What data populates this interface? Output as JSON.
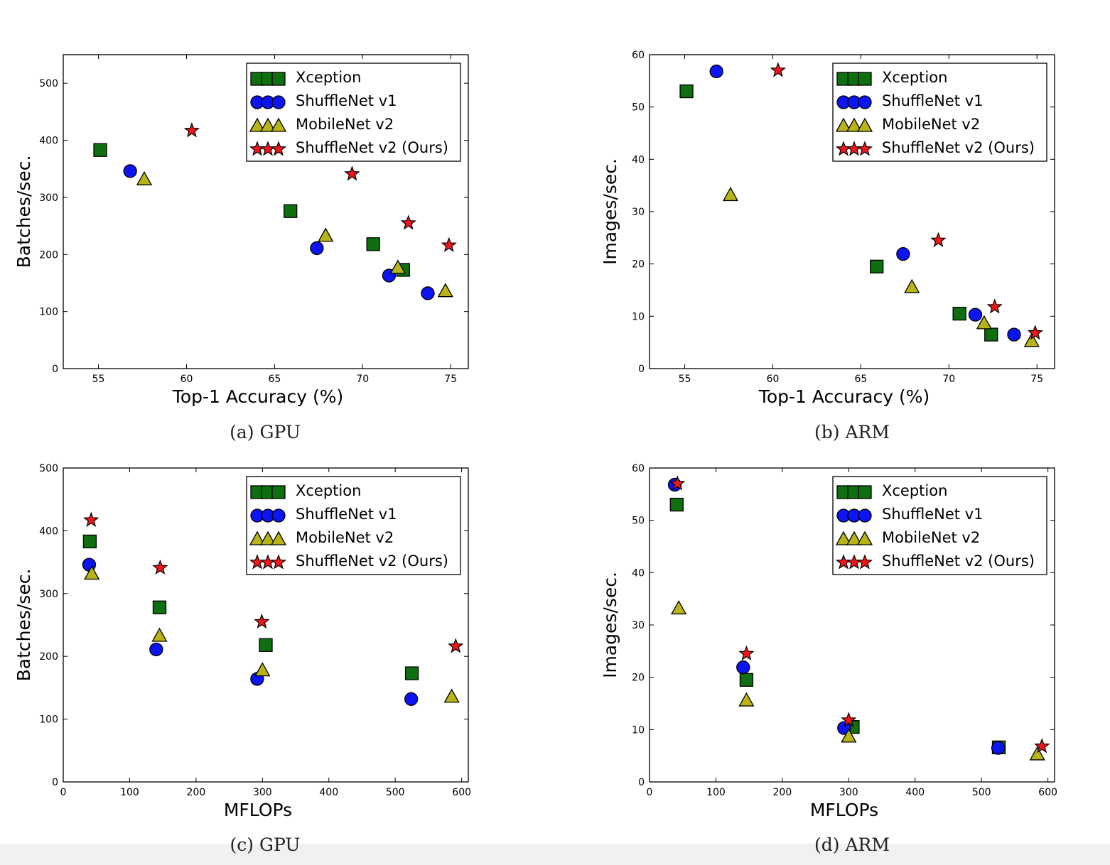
{
  "colors": {
    "xception": "#0f6e0f",
    "shufflenet_v1": "#0c14f2",
    "mobilenet_v2": "#b8b418",
    "shufflenet_v2": "#f0161c"
  },
  "captions": {
    "a": "(a) GPU",
    "b": "(b) ARM",
    "c": "(c) GPU",
    "d": "(d) ARM"
  },
  "chart_data": [
    {
      "id": "a",
      "type": "scatter",
      "xlabel": "Top-1 Accuracy (%)",
      "ylabel": "Batches/sec.",
      "xlim": [
        53,
        76
      ],
      "ylim": [
        0,
        550
      ],
      "xticks": [
        55,
        60,
        65,
        70,
        75
      ],
      "yticks": [
        0,
        100,
        200,
        300,
        400,
        500
      ],
      "legend": "top-right",
      "series": [
        {
          "name": "Xception",
          "marker": "square",
          "color": "#0f6e0f",
          "x": [
            55.1,
            65.9,
            70.6,
            72.3
          ],
          "y": [
            383,
            276,
            218,
            173
          ]
        },
        {
          "name": "ShuffleNet v1",
          "marker": "circle",
          "color": "#0c14f2",
          "x": [
            56.8,
            67.4,
            71.5,
            73.7
          ],
          "y": [
            346,
            211,
            163,
            132
          ]
        },
        {
          "name": "MobileNet v2",
          "marker": "triangle",
          "color": "#b8b418",
          "x": [
            57.6,
            67.9,
            72.0,
            74.7
          ],
          "y": [
            332,
            233,
            177,
            136
          ]
        },
        {
          "name": "ShuffleNet v2 (Ours)",
          "marker": "star",
          "color": "#f0161c",
          "x": [
            60.3,
            69.4,
            72.6,
            74.9
          ],
          "y": [
            417,
            341,
            255,
            216
          ]
        }
      ]
    },
    {
      "id": "b",
      "type": "scatter",
      "xlabel": "Top-1 Accuracy (%)",
      "ylabel": "Images/sec.",
      "xlim": [
        53,
        76
      ],
      "ylim": [
        0,
        60
      ],
      "xticks": [
        55,
        60,
        65,
        70,
        75
      ],
      "yticks": [
        0,
        10,
        20,
        30,
        40,
        50,
        60
      ],
      "legend": "top-right",
      "series": [
        {
          "name": "Xception",
          "marker": "square",
          "color": "#0f6e0f",
          "x": [
            55.1,
            65.9,
            70.6,
            72.4
          ],
          "y": [
            53.0,
            19.5,
            10.5,
            6.5
          ]
        },
        {
          "name": "ShuffleNet v1",
          "marker": "circle",
          "color": "#0c14f2",
          "x": [
            56.8,
            67.4,
            71.5,
            73.7
          ],
          "y": [
            56.8,
            21.9,
            10.3,
            6.5
          ]
        },
        {
          "name": "MobileNet v2",
          "marker": "triangle",
          "color": "#b8b418",
          "x": [
            57.6,
            67.9,
            72.0,
            74.7
          ],
          "y": [
            33.2,
            15.6,
            8.7,
            5.3
          ]
        },
        {
          "name": "ShuffleNet v2 (Ours)",
          "marker": "star",
          "color": "#f0161c",
          "x": [
            60.3,
            69.4,
            72.6,
            74.9
          ],
          "y": [
            57.0,
            24.5,
            11.8,
            6.8
          ]
        }
      ]
    },
    {
      "id": "c",
      "type": "scatter",
      "xlabel": "MFLOPs",
      "ylabel": "Batches/sec.",
      "xlim": [
        0,
        610
      ],
      "ylim": [
        0,
        500
      ],
      "xticks": [
        0,
        100,
        200,
        300,
        400,
        500,
        600
      ],
      "yticks": [
        0,
        100,
        200,
        300,
        400,
        500
      ],
      "legend": "top-right",
      "series": [
        {
          "name": "Xception",
          "marker": "square",
          "color": "#0f6e0f",
          "x": [
            40,
            145,
            305,
            525
          ],
          "y": [
            383,
            278,
            218,
            173
          ]
        },
        {
          "name": "ShuffleNet v1",
          "marker": "circle",
          "color": "#0c14f2",
          "x": [
            39,
            140,
            292,
            524
          ],
          "y": [
            346,
            211,
            164,
            132
          ]
        },
        {
          "name": "MobileNet v2",
          "marker": "triangle",
          "color": "#b8b418",
          "x": [
            43,
            145,
            300,
            585
          ],
          "y": [
            332,
            233,
            178,
            136
          ]
        },
        {
          "name": "ShuffleNet v2 (Ours)",
          "marker": "star",
          "color": "#f0161c",
          "x": [
            42,
            146,
            299,
            591
          ],
          "y": [
            417,
            341,
            255,
            216
          ]
        }
      ]
    },
    {
      "id": "d",
      "type": "scatter",
      "xlabel": "MFLOPs",
      "ylabel": "Images/sec.",
      "xlim": [
        0,
        610
      ],
      "ylim": [
        0,
        60
      ],
      "xticks": [
        0,
        100,
        200,
        300,
        400,
        500,
        600
      ],
      "yticks": [
        0,
        10,
        20,
        30,
        40,
        50,
        60
      ],
      "legend": "top-right",
      "series": [
        {
          "name": "Xception",
          "marker": "square",
          "color": "#0f6e0f",
          "x": [
            41,
            146,
            306,
            526
          ],
          "y": [
            53.0,
            19.5,
            10.5,
            6.6
          ]
        },
        {
          "name": "ShuffleNet v1",
          "marker": "circle",
          "color": "#0c14f2",
          "x": [
            38,
            141,
            293,
            525
          ],
          "y": [
            56.8,
            21.9,
            10.3,
            6.5
          ]
        },
        {
          "name": "MobileNet v2",
          "marker": "triangle",
          "color": "#b8b418",
          "x": [
            44,
            146,
            300,
            584
          ],
          "y": [
            33.2,
            15.6,
            8.7,
            5.3
          ]
        },
        {
          "name": "ShuffleNet v2 (Ours)",
          "marker": "star",
          "color": "#f0161c",
          "x": [
            42,
            146,
            300,
            591
          ],
          "y": [
            57.0,
            24.5,
            11.8,
            6.8
          ]
        }
      ]
    }
  ]
}
